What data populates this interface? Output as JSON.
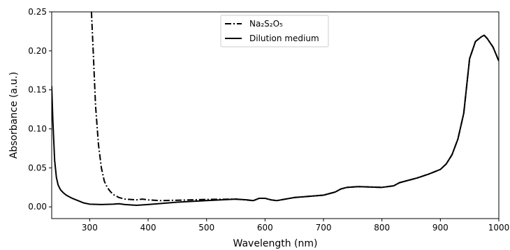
{
  "chart_data": {
    "type": "line",
    "xlabel": "Wavelength (nm)",
    "ylabel": "Absorbance (a.u.)",
    "xlim": [
      235,
      1000
    ],
    "ylim": [
      -0.015,
      0.25
    ],
    "xticks": [
      "300",
      "400",
      "500",
      "600",
      "700",
      "800",
      "900",
      "1000"
    ],
    "yticks": [
      "0.00",
      "0.05",
      "0.10",
      "0.15",
      "0.20",
      "0.25"
    ],
    "grid": false,
    "legend_position": "top-center",
    "series": [
      {
        "name": "Na₂S₂O₅",
        "style": "dashdot",
        "color": "#000000",
        "x": [
          303,
          306,
          310,
          315,
          320,
          325,
          330,
          335,
          340,
          350,
          360,
          370,
          380,
          390,
          400,
          420,
          450,
          500,
          550,
          580,
          590,
          600,
          610,
          620,
          650,
          700,
          720,
          730,
          740,
          760,
          800,
          820,
          830,
          840,
          860,
          880,
          900,
          910,
          920,
          930,
          940,
          950,
          960,
          970,
          975,
          980,
          990,
          1000
        ],
        "y": [
          0.25,
          0.2,
          0.13,
          0.08,
          0.05,
          0.033,
          0.025,
          0.02,
          0.016,
          0.012,
          0.01,
          0.0095,
          0.009,
          0.01,
          0.009,
          0.008,
          0.0085,
          0.0095,
          0.01,
          0.008,
          0.011,
          0.011,
          0.009,
          0.008,
          0.012,
          0.015,
          0.019,
          0.023,
          0.025,
          0.026,
          0.025,
          0.027,
          0.031,
          0.033,
          0.037,
          0.042,
          0.048,
          0.055,
          0.067,
          0.087,
          0.12,
          0.19,
          0.212,
          0.218,
          0.22,
          0.216,
          0.205,
          0.187
        ]
      },
      {
        "name": "Dilution medium",
        "style": "solid",
        "color": "#000000",
        "x": [
          235,
          237,
          240,
          243,
          246,
          250,
          255,
          260,
          270,
          280,
          290,
          300,
          320,
          340,
          350,
          360,
          380,
          400,
          450,
          500,
          550,
          570,
          580,
          590,
          600,
          610,
          620,
          650,
          700,
          720,
          730,
          740,
          760,
          800,
          820,
          830,
          840,
          860,
          880,
          900,
          910,
          920,
          930,
          940,
          950,
          960,
          970,
          975,
          980,
          990,
          1000
        ],
        "y": [
          0.155,
          0.11,
          0.06,
          0.038,
          0.028,
          0.022,
          0.018,
          0.015,
          0.011,
          0.008,
          0.005,
          0.0035,
          0.003,
          0.0035,
          0.004,
          0.003,
          0.002,
          0.003,
          0.006,
          0.008,
          0.01,
          0.009,
          0.008,
          0.011,
          0.011,
          0.009,
          0.008,
          0.012,
          0.015,
          0.019,
          0.023,
          0.025,
          0.026,
          0.025,
          0.027,
          0.031,
          0.033,
          0.037,
          0.042,
          0.048,
          0.055,
          0.067,
          0.087,
          0.12,
          0.19,
          0.212,
          0.218,
          0.22,
          0.216,
          0.205,
          0.187
        ]
      }
    ]
  }
}
